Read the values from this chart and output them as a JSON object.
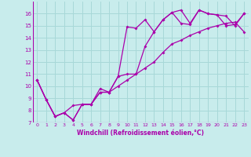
{
  "xlabel": "Windchill (Refroidissement éolien,°C)",
  "background_color": "#c8ecec",
  "grid_color": "#a8d8d8",
  "line_color": "#aa00aa",
  "x": [
    0,
    1,
    2,
    3,
    4,
    5,
    6,
    7,
    8,
    9,
    10,
    11,
    12,
    13,
    14,
    15,
    16,
    17,
    18,
    19,
    20,
    21,
    22,
    23
  ],
  "line1": [
    10.5,
    8.9,
    7.5,
    7.8,
    7.2,
    8.5,
    8.5,
    9.8,
    9.5,
    10.8,
    14.9,
    14.8,
    15.5,
    14.5,
    15.5,
    16.1,
    15.2,
    15.1,
    16.3,
    16.0,
    15.9,
    15.8,
    15.0,
    16.0
  ],
  "line2": [
    10.5,
    8.9,
    7.5,
    7.8,
    7.2,
    8.5,
    8.5,
    9.5,
    9.5,
    10.8,
    11.0,
    11.0,
    13.3,
    14.5,
    15.5,
    16.1,
    16.3,
    15.2,
    16.3,
    16.0,
    15.9,
    15.0,
    15.1,
    16.0
  ],
  "line3": [
    10.5,
    8.9,
    7.5,
    7.8,
    8.4,
    8.5,
    8.5,
    9.5,
    9.5,
    10.0,
    10.5,
    11.0,
    11.5,
    12.0,
    12.8,
    13.5,
    13.8,
    14.2,
    14.5,
    14.8,
    15.0,
    15.2,
    15.3,
    14.5
  ],
  "ylim": [
    7,
    17
  ],
  "xlim": [
    -0.5,
    23.5
  ],
  "yticks": [
    7,
    8,
    9,
    10,
    11,
    12,
    13,
    14,
    15,
    16
  ],
  "xticks": [
    0,
    1,
    2,
    3,
    4,
    5,
    6,
    7,
    8,
    9,
    10,
    11,
    12,
    13,
    14,
    15,
    16,
    17,
    18,
    19,
    20,
    21,
    22,
    23
  ]
}
